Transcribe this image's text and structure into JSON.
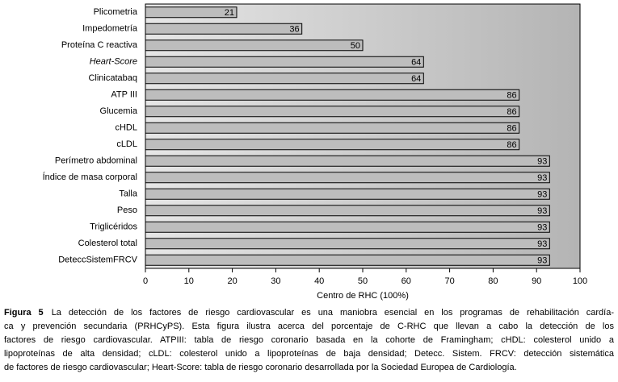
{
  "chart_data": {
    "type": "barh",
    "categories": [
      "Plicometria",
      "Impedometría",
      "Proteína C reactiva",
      "Heart-Score",
      "Clinicatabaq",
      "ATP III",
      "Glucemia",
      "cHDL",
      "cLDL",
      "Perímetro abdominal",
      "Índice de masa corporal",
      "Talla",
      "Peso",
      "Triglicéridos",
      "Colesterol total",
      "DeteccSistemFRCV"
    ],
    "values": [
      21,
      36,
      50,
      64,
      64,
      86,
      86,
      86,
      86,
      93,
      93,
      93,
      93,
      93,
      93,
      93
    ],
    "color": "#bdbdbd",
    "xlim": [
      0,
      100
    ],
    "xticks": [
      0,
      10,
      20,
      30,
      40,
      50,
      60,
      70,
      80,
      90,
      100
    ],
    "x_label": "Centro de RHC (100%)"
  },
  "caption": {
    "label": "Figura 5",
    "lines": [
      "La detección de los factores de riesgo cardiovascular es una maniobra esencial en los programas de rehabilitación cardía-",
      "ca y prevención secundaria (PRHCyPS). Esta figura ilustra acerca del porcentaje de C-RHC que llevan a cabo la detección de los",
      "factores de riesgo cardiovascular. ATPIII: tabla de riesgo coronario basada en la cohorte de Framingham; cHDL: colesterol unido a",
      "lipoproteínas de alta densidad; cLDL: colesterol unido a lipoproteínas de baja densidad; Detecc. Sistem. FRCV: detección sistemática",
      "de factores de riesgo cardiovascular; Heart-Score: tabla de riesgo coronario desarrollada por la Sociedad Europea de Cardiología."
    ]
  }
}
